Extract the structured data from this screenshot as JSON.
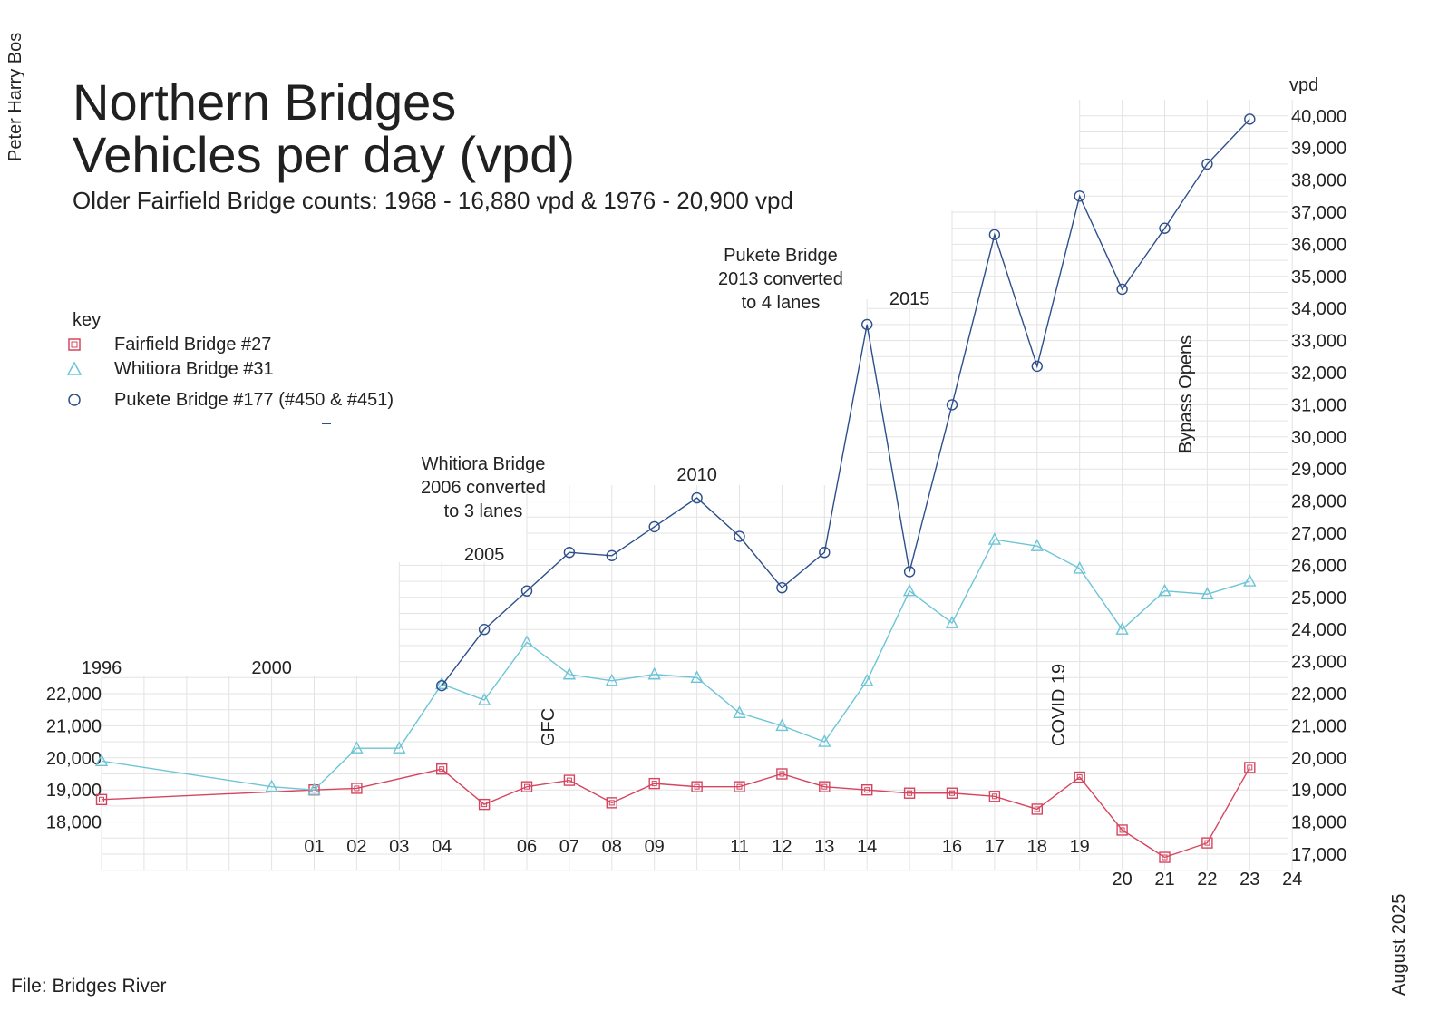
{
  "page": {
    "title_line1": "Northern Bridges",
    "title_line2": "Vehicles per day (vpd)",
    "subtitle": "Older Fairfield Bridge counts: 1968 - 16,880 vpd & 1976 - 20,900 vpd",
    "author": "Peter Harry Bos",
    "file_label": "File: Bridges River",
    "date": "August 2025"
  },
  "legend": {
    "title": "key",
    "items": [
      {
        "label": "Fairfield Bridge #27",
        "symbol": "square",
        "color": "#d6455f"
      },
      {
        "label": "Whitiora Bridge #31",
        "symbol": "triangle",
        "color": "#6cc5d6"
      },
      {
        "label": "Pukete Bridge #177 (#450 & #451)",
        "symbol": "circle",
        "color": "#2d4f8a"
      }
    ],
    "stray_mark": "–"
  },
  "chart_data": {
    "type": "line",
    "xlabel": "",
    "ylabel": "vpd",
    "xlim": [
      1996,
      2024
    ],
    "ylim": [
      17000,
      40000
    ],
    "grid": true,
    "legend_position": "left",
    "x_tick_labels": [
      {
        "x": 1996,
        "label": "1996",
        "row": "top"
      },
      {
        "x": 2000,
        "label": "2000",
        "row": "top"
      },
      {
        "x": 2001,
        "label": "01",
        "row": "bottom"
      },
      {
        "x": 2002,
        "label": "02",
        "row": "bottom"
      },
      {
        "x": 2003,
        "label": "03",
        "row": "bottom"
      },
      {
        "x": 2004,
        "label": "04",
        "row": "bottom"
      },
      {
        "x": 2005,
        "label": "2005",
        "row": "high"
      },
      {
        "x": 2006,
        "label": "06",
        "row": "bottom"
      },
      {
        "x": 2007,
        "label": "07",
        "row": "bottom"
      },
      {
        "x": 2008,
        "label": "08",
        "row": "bottom"
      },
      {
        "x": 2009,
        "label": "09",
        "row": "bottom"
      },
      {
        "x": 2010,
        "label": "2010",
        "row": "high"
      },
      {
        "x": 2011,
        "label": "11",
        "row": "bottom"
      },
      {
        "x": 2012,
        "label": "12",
        "row": "bottom"
      },
      {
        "x": 2013,
        "label": "13",
        "row": "bottom"
      },
      {
        "x": 2014,
        "label": "14",
        "row": "bottom"
      },
      {
        "x": 2015,
        "label": "2015",
        "row": "high"
      },
      {
        "x": 2016,
        "label": "16",
        "row": "bottom"
      },
      {
        "x": 2017,
        "label": "17",
        "row": "bottom"
      },
      {
        "x": 2018,
        "label": "18",
        "row": "bottom"
      },
      {
        "x": 2019,
        "label": "19",
        "row": "bottom"
      },
      {
        "x": 2020,
        "label": "20",
        "row": "lower"
      },
      {
        "x": 2021,
        "label": "21",
        "row": "lower"
      },
      {
        "x": 2022,
        "label": "22",
        "row": "lower"
      },
      {
        "x": 2023,
        "label": "23",
        "row": "lower"
      },
      {
        "x": 2024,
        "label": "24",
        "row": "lower"
      }
    ],
    "y_ticks_right": [
      17000,
      18000,
      19000,
      20000,
      21000,
      22000,
      23000,
      24000,
      25000,
      26000,
      27000,
      28000,
      29000,
      30000,
      31000,
      32000,
      33000,
      34000,
      35000,
      36000,
      37000,
      38000,
      39000,
      40000
    ],
    "y_tick_labels_right": [
      "17,000",
      "18,000",
      "19,000",
      "20,000",
      "21,000",
      "22,000",
      "23,000",
      "24,000",
      "25,000",
      "26,000",
      "27,000",
      "28,000",
      "29,000",
      "30,000",
      "31,000",
      "32,000",
      "33,000",
      "34,000",
      "35,000",
      "36,000",
      "37,000",
      "38,000",
      "39,000",
      "40,000"
    ],
    "y_ticks_left": [
      18000,
      19000,
      20000,
      21000,
      22000
    ],
    "y_tick_labels_left": [
      "18,000",
      "19,000",
      "20,000",
      "21,000",
      "22,000"
    ],
    "series": [
      {
        "name": "Fairfield Bridge #27",
        "marker": "square",
        "color": "#d6455f",
        "x": [
          1996,
          2001,
          2002,
          2004,
          2005,
          2006,
          2007,
          2008,
          2009,
          2010,
          2011,
          2012,
          2013,
          2014,
          2015,
          2016,
          2017,
          2018,
          2019,
          2020,
          2021,
          2022,
          2023
        ],
        "values": [
          18700,
          19000,
          19050,
          19650,
          18550,
          19100,
          19300,
          18600,
          19200,
          19100,
          19100,
          19500,
          19100,
          19000,
          18900,
          18900,
          18800,
          18400,
          19400,
          17750,
          16900,
          17350,
          19700
        ]
      },
      {
        "name": "Whitiora Bridge #31",
        "marker": "triangle",
        "color": "#6cc5d6",
        "x": [
          1996,
          2000,
          2001,
          2002,
          2003,
          2004,
          2005,
          2006,
          2007,
          2008,
          2009,
          2010,
          2011,
          2012,
          2013,
          2014,
          2015,
          2016,
          2017,
          2018,
          2019,
          2020,
          2021,
          2022,
          2023
        ],
        "values": [
          19900,
          19100,
          19000,
          20300,
          20300,
          22300,
          21800,
          23600,
          22600,
          22400,
          22600,
          22500,
          21400,
          21000,
          20500,
          22400,
          25200,
          24200,
          26800,
          26600,
          25900,
          24000,
          25200,
          25100,
          25500
        ]
      },
      {
        "name": "Pukete Bridge #177 (#450 & #451)",
        "marker": "circle",
        "color": "#2d4f8a",
        "x": [
          2004,
          2005,
          2006,
          2007,
          2008,
          2009,
          2010,
          2011,
          2012,
          2013,
          2014,
          2015,
          2016,
          2017,
          2018,
          2019,
          2020,
          2021,
          2022,
          2023
        ],
        "values": [
          22250,
          24000,
          25200,
          26400,
          26300,
          27200,
          28100,
          26900,
          25300,
          26400,
          33500,
          25800,
          31000,
          36300,
          32200,
          37500,
          34600,
          36500,
          38500,
          39900
        ]
      }
    ],
    "annotations": [
      {
        "lines": [
          "Whitiora Bridge",
          "2006 converted",
          "to 3 lanes"
        ],
        "x": 2006
      },
      {
        "lines": [
          "Pukete Bridge",
          "2013 converted",
          "to 4 lanes"
        ],
        "x": 2013
      },
      {
        "lines": [
          "GFC"
        ],
        "x": 2007.5,
        "rotated": true
      },
      {
        "lines": [
          "COVID 19"
        ],
        "x": 2019.5,
        "rotated": true
      },
      {
        "lines": [
          "Bypass Opens"
        ],
        "x": 2023.5,
        "rotated": true
      }
    ]
  }
}
